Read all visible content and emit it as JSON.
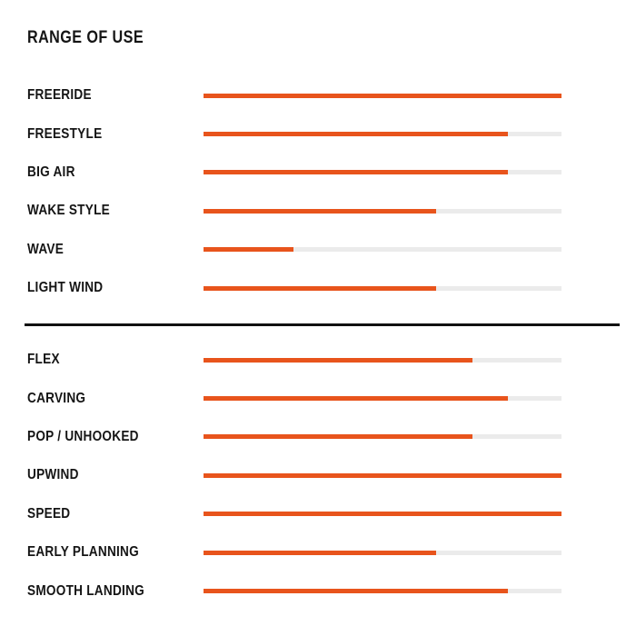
{
  "title": "RANGE OF USE",
  "colors": {
    "bar": "#E8541C",
    "track": "#EBEBEB",
    "text": "#151515",
    "divider": "#111111"
  },
  "sections": [
    {
      "name": "range-of-use",
      "rows": [
        {
          "label": "FREERIDE",
          "value": 100
        },
        {
          "label": "FREESTYLE",
          "value": 85
        },
        {
          "label": "BIG AIR",
          "value": 85
        },
        {
          "label": "WAKE STYLE",
          "value": 65
        },
        {
          "label": "WAVE",
          "value": 25
        },
        {
          "label": "LIGHT WIND",
          "value": 65
        }
      ]
    },
    {
      "name": "characteristics",
      "rows": [
        {
          "label": "FLEX",
          "value": 75
        },
        {
          "label": "CARVING",
          "value": 85
        },
        {
          "label": "POP / UNHOOKED",
          "value": 75
        },
        {
          "label": "UPWIND",
          "value": 100
        },
        {
          "label": "SPEED",
          "value": 100
        },
        {
          "label": "EARLY PLANNING",
          "value": 65
        },
        {
          "label": "SMOOTH LANDING",
          "value": 85
        }
      ]
    }
  ],
  "chart_data": [
    {
      "type": "bar",
      "orientation": "horizontal",
      "title": "RANGE OF USE",
      "categories": [
        "FREERIDE",
        "FREESTYLE",
        "BIG AIR",
        "WAKE STYLE",
        "WAVE",
        "LIGHT WIND"
      ],
      "values": [
        100,
        85,
        85,
        65,
        25,
        65
      ],
      "xlabel": "",
      "ylabel": "",
      "xlim": [
        0,
        100
      ],
      "grid": false,
      "legend": "none",
      "bar_color": "#E8541C",
      "track_color": "#EBEBEB"
    },
    {
      "type": "bar",
      "orientation": "horizontal",
      "title": "",
      "categories": [
        "FLEX",
        "CARVING",
        "POP / UNHOOKED",
        "UPWIND",
        "SPEED",
        "EARLY PLANNING",
        "SMOOTH LANDING"
      ],
      "values": [
        75,
        85,
        75,
        100,
        100,
        65,
        85
      ],
      "xlabel": "",
      "ylabel": "",
      "xlim": [
        0,
        100
      ],
      "grid": false,
      "legend": "none",
      "bar_color": "#E8541C",
      "track_color": "#EBEBEB"
    }
  ]
}
